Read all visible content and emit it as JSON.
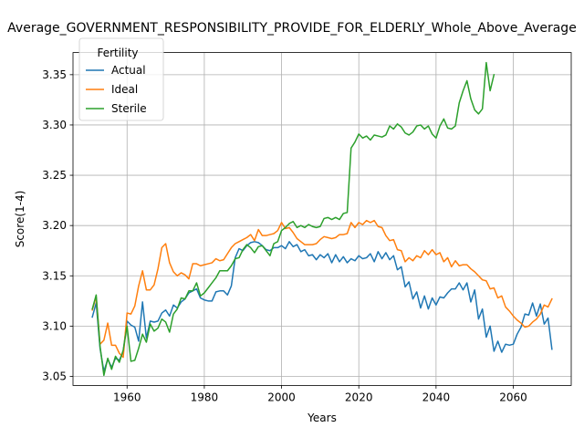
{
  "chart_data": {
    "type": "line",
    "title": "Average_GOVERNMENT_RESPONSIBILITY_PROVIDE_FOR_ELDERLY_Whole_Above_Average",
    "xlabel": "Years",
    "ylabel": "Score(1-4)",
    "xlim": [
      1946,
      2075
    ],
    "ylim": [
      3.041,
      3.372
    ],
    "xticks": [
      1960,
      1980,
      2000,
      2020,
      2040,
      2060
    ],
    "yticks": [
      3.05,
      3.1,
      3.15,
      3.2,
      3.25,
      3.3,
      3.35
    ],
    "ytick_labels": [
      "3.05",
      "3.10",
      "3.15",
      "3.20",
      "3.25",
      "3.30",
      "3.35"
    ],
    "grid": true,
    "legend": {
      "title": "Fertility",
      "position": "top-left"
    },
    "series": [
      {
        "name": "Actual",
        "color": "#1f77b4",
        "x": [
          1951,
          1952,
          1953,
          1954,
          1955,
          1956,
          1957,
          1958,
          1959,
          1960,
          1961,
          1962,
          1963,
          1964,
          1965,
          1966,
          1967,
          1968,
          1969,
          1970,
          1971,
          1972,
          1973,
          1974,
          1975,
          1976,
          1977,
          1978,
          1979,
          1980,
          1981,
          1982,
          1983,
          1984,
          1985,
          1986,
          1987,
          1988,
          1989,
          1990,
          1991,
          1992,
          1993,
          1994,
          1995,
          1996,
          1997,
          1998,
          1999,
          2000,
          2001,
          2002,
          2003,
          2004,
          2005,
          2006,
          2007,
          2008,
          2009,
          2010,
          2011,
          2012,
          2013,
          2014,
          2015,
          2016,
          2017,
          2018,
          2019,
          2020,
          2021,
          2022,
          2023,
          2024,
          2025,
          2026,
          2027,
          2028,
          2029,
          2030,
          2031,
          2032,
          2033,
          2034,
          2035,
          2036,
          2037,
          2038,
          2039,
          2040,
          2041,
          2042,
          2043,
          2044,
          2045,
          2046,
          2047,
          2048,
          2049,
          2050,
          2051,
          2052,
          2053,
          2054,
          2055,
          2056,
          2057,
          2058,
          2059,
          2060,
          2061,
          2062,
          2063,
          2064,
          2065,
          2066,
          2067,
          2068,
          2069,
          2070
        ],
        "values": [
          3.109,
          3.123,
          3.078,
          3.055,
          3.067,
          3.059,
          3.068,
          3.066,
          3.075,
          3.105,
          3.101,
          3.099,
          3.085,
          3.124,
          3.088,
          3.105,
          3.104,
          3.105,
          3.113,
          3.116,
          3.11,
          3.121,
          3.118,
          3.124,
          3.127,
          3.133,
          3.135,
          3.137,
          3.128,
          3.126,
          3.125,
          3.125,
          3.134,
          3.135,
          3.135,
          3.131,
          3.14,
          3.168,
          3.177,
          3.175,
          3.18,
          3.183,
          3.184,
          3.183,
          3.18,
          3.176,
          3.175,
          3.178,
          3.178,
          3.18,
          3.177,
          3.184,
          3.179,
          3.181,
          3.174,
          3.176,
          3.17,
          3.171,
          3.166,
          3.171,
          3.168,
          3.172,
          3.163,
          3.171,
          3.164,
          3.169,
          3.163,
          3.167,
          3.165,
          3.17,
          3.167,
          3.168,
          3.172,
          3.164,
          3.174,
          3.167,
          3.173,
          3.166,
          3.17,
          3.156,
          3.159,
          3.139,
          3.144,
          3.127,
          3.134,
          3.118,
          3.13,
          3.117,
          3.128,
          3.121,
          3.129,
          3.128,
          3.133,
          3.137,
          3.137,
          3.143,
          3.136,
          3.143,
          3.124,
          3.136,
          3.107,
          3.117,
          3.089,
          3.1,
          3.075,
          3.085,
          3.074,
          3.082,
          3.081,
          3.082,
          3.092,
          3.099,
          3.112,
          3.111,
          3.123,
          3.11,
          3.122,
          3.102,
          3.108,
          3.077
        ]
      },
      {
        "name": "Ideal",
        "color": "#ff7f0e",
        "x": [
          1951,
          1952,
          1953,
          1954,
          1955,
          1956,
          1957,
          1958,
          1959,
          1960,
          1961,
          1962,
          1963,
          1964,
          1965,
          1966,
          1967,
          1968,
          1969,
          1970,
          1971,
          1972,
          1973,
          1974,
          1975,
          1976,
          1977,
          1978,
          1979,
          1980,
          1981,
          1982,
          1983,
          1984,
          1985,
          1986,
          1987,
          1988,
          1989,
          1990,
          1991,
          1992,
          1993,
          1994,
          1995,
          1996,
          1997,
          1998,
          1999,
          2000,
          2001,
          2002,
          2003,
          2004,
          2005,
          2006,
          2007,
          2008,
          2009,
          2010,
          2011,
          2012,
          2013,
          2014,
          2015,
          2016,
          2017,
          2018,
          2019,
          2020,
          2021,
          2022,
          2023,
          2024,
          2025,
          2026,
          2027,
          2028,
          2029,
          2030,
          2031,
          2032,
          2033,
          2034,
          2035,
          2036,
          2037,
          2038,
          2039,
          2040,
          2041,
          2042,
          2043,
          2044,
          2045,
          2046,
          2047,
          2048,
          2049,
          2050,
          2051,
          2052,
          2053,
          2054,
          2055,
          2056,
          2057,
          2058,
          2059,
          2060,
          2061,
          2062,
          2063,
          2064,
          2065,
          2066,
          2067,
          2068,
          2069,
          2070
        ],
        "values": [
          3.116,
          3.129,
          3.082,
          3.086,
          3.103,
          3.081,
          3.081,
          3.073,
          3.069,
          3.113,
          3.112,
          3.12,
          3.14,
          3.155,
          3.136,
          3.136,
          3.141,
          3.157,
          3.178,
          3.182,
          3.163,
          3.154,
          3.15,
          3.153,
          3.151,
          3.147,
          3.162,
          3.162,
          3.16,
          3.161,
          3.162,
          3.163,
          3.167,
          3.165,
          3.166,
          3.172,
          3.178,
          3.182,
          3.184,
          3.186,
          3.188,
          3.191,
          3.185,
          3.196,
          3.19,
          3.19,
          3.191,
          3.192,
          3.195,
          3.203,
          3.197,
          3.198,
          3.193,
          3.187,
          3.184,
          3.181,
          3.181,
          3.181,
          3.182,
          3.186,
          3.189,
          3.188,
          3.187,
          3.188,
          3.191,
          3.191,
          3.192,
          3.203,
          3.198,
          3.203,
          3.201,
          3.205,
          3.203,
          3.205,
          3.199,
          3.198,
          3.19,
          3.185,
          3.186,
          3.176,
          3.175,
          3.164,
          3.168,
          3.165,
          3.17,
          3.168,
          3.175,
          3.171,
          3.176,
          3.171,
          3.173,
          3.164,
          3.168,
          3.159,
          3.165,
          3.16,
          3.161,
          3.161,
          3.157,
          3.154,
          3.15,
          3.146,
          3.145,
          3.137,
          3.138,
          3.128,
          3.13,
          3.119,
          3.115,
          3.11,
          3.106,
          3.103,
          3.099,
          3.1,
          3.104,
          3.107,
          3.112,
          3.121,
          3.119,
          3.127
        ]
      },
      {
        "name": "Sterile",
        "color": "#2ca02c",
        "x": [
          1951,
          1952,
          1953,
          1954,
          1955,
          1956,
          1957,
          1958,
          1959,
          1960,
          1961,
          1962,
          1963,
          1964,
          1965,
          1966,
          1967,
          1968,
          1969,
          1970,
          1971,
          1972,
          1973,
          1974,
          1975,
          1976,
          1977,
          1978,
          1979,
          1980,
          1981,
          1982,
          1983,
          1984,
          1985,
          1986,
          1987,
          1988,
          1989,
          1990,
          1991,
          1992,
          1993,
          1994,
          1995,
          1996,
          1997,
          1998,
          1999,
          2000,
          2001,
          2002,
          2003,
          2004,
          2005,
          2006,
          2007,
          2008,
          2009,
          2010,
          2011,
          2012,
          2013,
          2014,
          2015,
          2016,
          2017,
          2018,
          2019,
          2020,
          2021,
          2022,
          2023,
          2024,
          2025,
          2026,
          2027,
          2028,
          2029,
          2030,
          2031,
          2032,
          2033,
          2034,
          2035,
          2036,
          2037,
          2038,
          2039,
          2040,
          2041,
          2042,
          2043,
          2044,
          2045,
          2046,
          2047,
          2048,
          2049,
          2050,
          2051,
          2052,
          2053,
          2054,
          2055
        ],
        "values": [
          3.117,
          3.131,
          3.08,
          3.051,
          3.068,
          3.057,
          3.07,
          3.064,
          3.076,
          3.1,
          3.065,
          3.066,
          3.078,
          3.092,
          3.084,
          3.102,
          3.095,
          3.098,
          3.107,
          3.104,
          3.094,
          3.112,
          3.117,
          3.128,
          3.127,
          3.135,
          3.135,
          3.143,
          3.13,
          3.133,
          3.138,
          3.143,
          3.148,
          3.155,
          3.155,
          3.155,
          3.16,
          3.167,
          3.168,
          3.176,
          3.181,
          3.178,
          3.173,
          3.179,
          3.18,
          3.175,
          3.17,
          3.182,
          3.184,
          3.195,
          3.198,
          3.202,
          3.204,
          3.198,
          3.2,
          3.198,
          3.201,
          3.199,
          3.198,
          3.199,
          3.207,
          3.208,
          3.206,
          3.208,
          3.206,
          3.212,
          3.213,
          3.277,
          3.283,
          3.291,
          3.287,
          3.289,
          3.285,
          3.29,
          3.289,
          3.288,
          3.29,
          3.299,
          3.296,
          3.301,
          3.298,
          3.292,
          3.29,
          3.293,
          3.299,
          3.3,
          3.296,
          3.299,
          3.291,
          3.287,
          3.299,
          3.306,
          3.297,
          3.296,
          3.299,
          3.322,
          3.334,
          3.344,
          3.326,
          3.315,
          3.311,
          3.316,
          3.362,
          3.334,
          3.35
        ]
      }
    ]
  }
}
